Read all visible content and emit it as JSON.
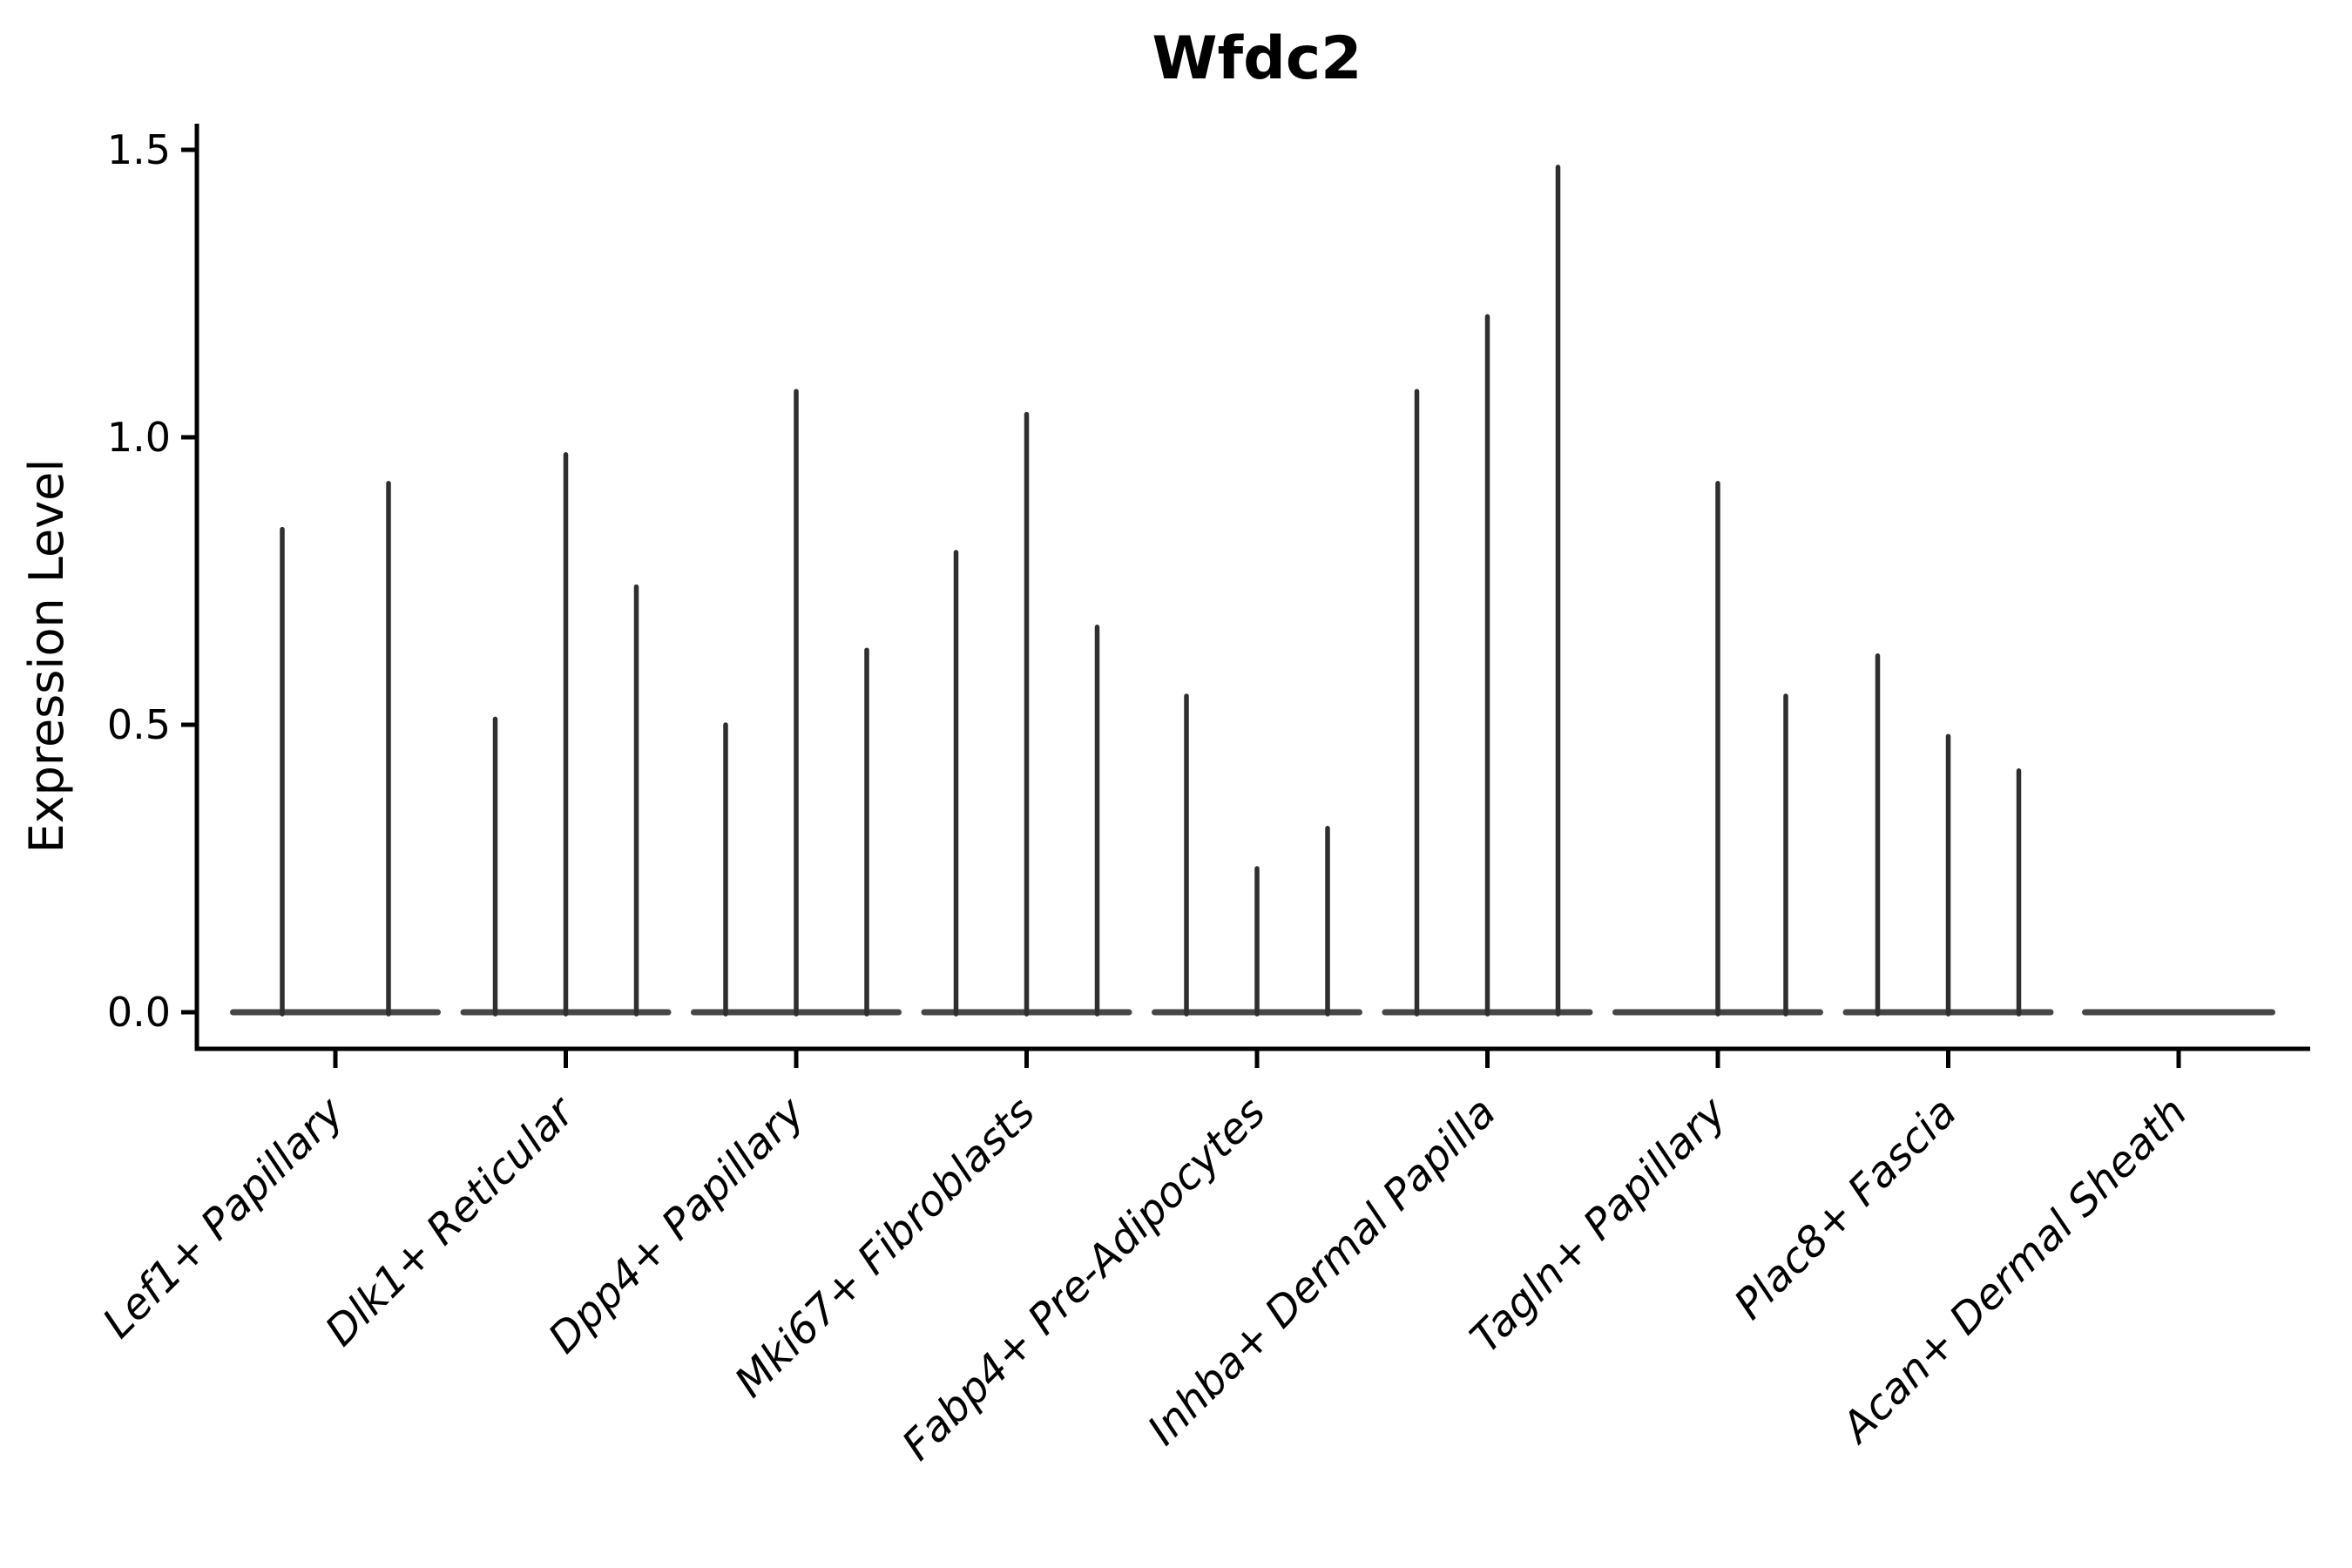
{
  "title": "Wfdc2",
  "colors": {
    "background": "#ffffff",
    "axis": "#000000",
    "text": "#000000",
    "spike": "#2f2f2f",
    "baseline": "#464646"
  },
  "chart_data": {
    "type": "violin",
    "title": "Wfdc2",
    "xlabel": "",
    "ylabel": "Expression Level",
    "ylim": [
      -0.064,
      1.545
    ],
    "yticks": [
      "0.0",
      "0.5",
      "1.0",
      "1.5"
    ],
    "ytick_values": [
      0.0,
      0.5,
      1.0,
      1.5
    ],
    "grid": false,
    "legend": null,
    "note": "Each category shows thin collapsed violins: a baseline bar at 0 plus narrow spikes whose tops mark the maximum expression value of each dodged violin.",
    "categories": [
      {
        "label": "Lef1+ Papillary",
        "violins": [
          {
            "offset": -61,
            "max": 0.84
          },
          {
            "offset": 61,
            "max": 0.92
          }
        ]
      },
      {
        "label": "Dlk1+ Reticular",
        "violins": [
          {
            "offset": -81,
            "max": 0.51
          },
          {
            "offset": 0,
            "max": 0.97
          },
          {
            "offset": 81,
            "max": 0.74
          }
        ]
      },
      {
        "label": "Dpp4+ Papillary",
        "violins": [
          {
            "offset": -81,
            "max": 0.5
          },
          {
            "offset": 0,
            "max": 1.08
          },
          {
            "offset": 81,
            "max": 0.63
          }
        ]
      },
      {
        "label": "Mki67+ Fibroblasts",
        "violins": [
          {
            "offset": -81,
            "max": 0.8
          },
          {
            "offset": 0,
            "max": 1.04
          },
          {
            "offset": 81,
            "max": 0.67
          }
        ]
      },
      {
        "label": "Fabp4+ Pre-Adipocytes",
        "violins": [
          {
            "offset": -81,
            "max": 0.55
          },
          {
            "offset": 0,
            "max": 0.25
          },
          {
            "offset": 81,
            "max": 0.32
          }
        ]
      },
      {
        "label": "Inhba+ Dermal Papilla",
        "violins": [
          {
            "offset": -81,
            "max": 1.08
          },
          {
            "offset": 0,
            "max": 1.21
          },
          {
            "offset": 81,
            "max": 1.47
          }
        ]
      },
      {
        "label": "Tagln+ Papillary",
        "violins": [
          {
            "offset": 0,
            "max": 0.92
          },
          {
            "offset": 78,
            "max": 0.55
          }
        ]
      },
      {
        "label": "Plac8+ Fascia",
        "violins": [
          {
            "offset": -81,
            "max": 0.62
          },
          {
            "offset": 0,
            "max": 0.48
          },
          {
            "offset": 81,
            "max": 0.42
          }
        ]
      },
      {
        "label": "Acan+ Dermal Sheath",
        "violins": []
      }
    ]
  }
}
